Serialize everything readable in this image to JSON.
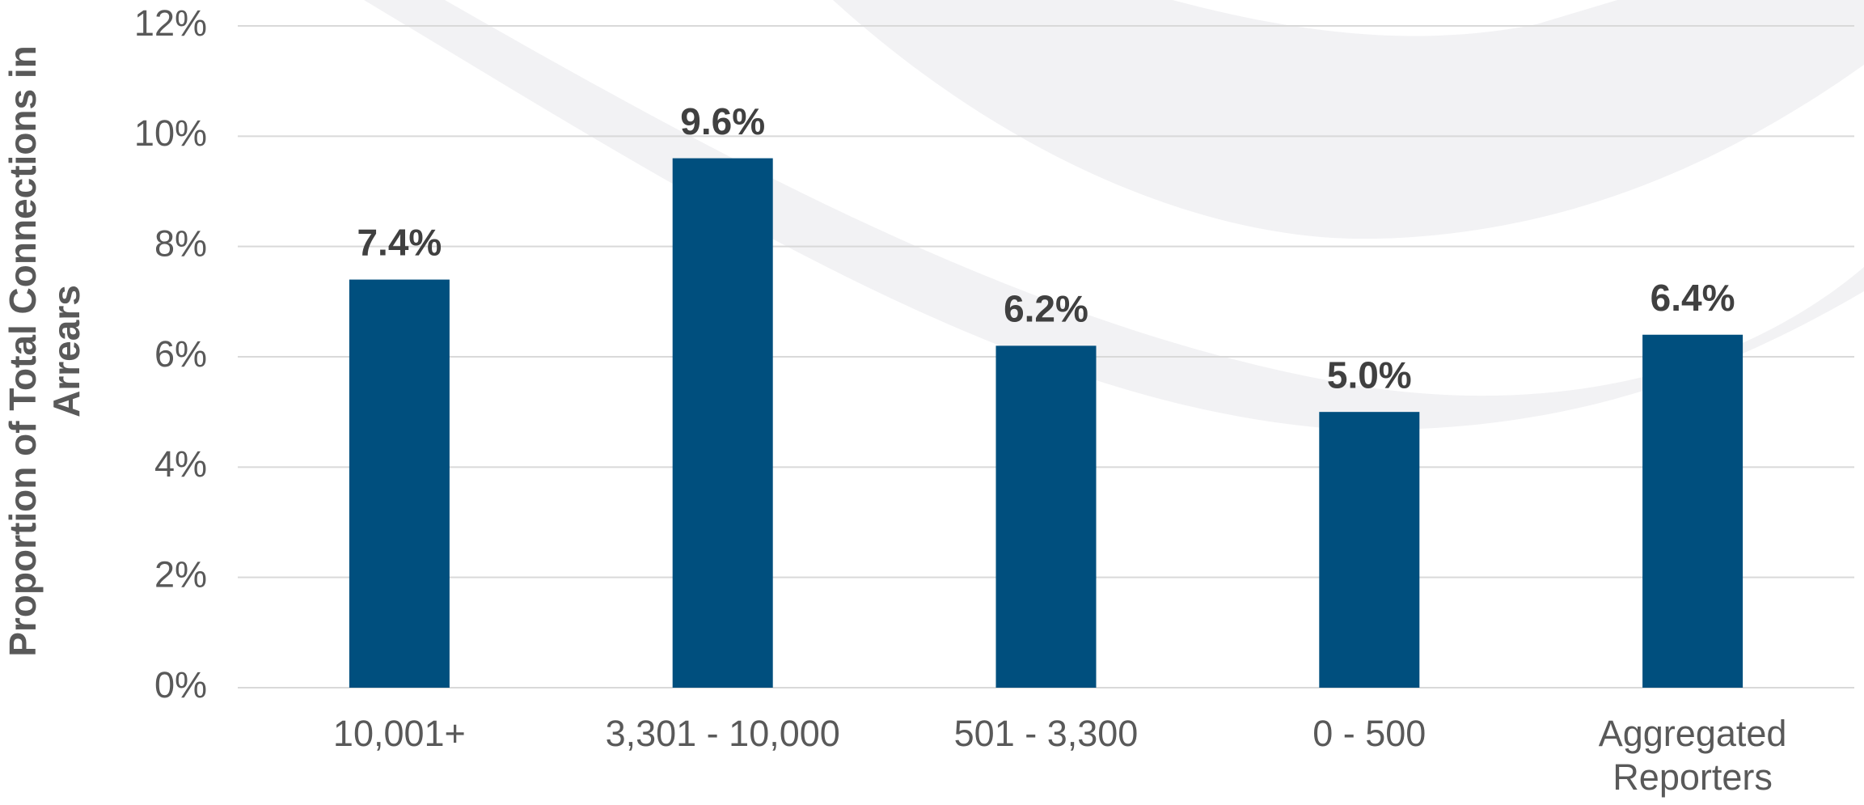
{
  "chart_data": {
    "type": "bar",
    "y_label": "Proportion of Total Connections in Arrears",
    "categories": [
      "10,001+",
      "3,301 - 10,000",
      "501 - 3,300",
      "0 - 500",
      "Aggregated Reporters"
    ],
    "values": [
      7.4,
      9.6,
      6.2,
      5.0,
      6.4
    ],
    "value_labels": [
      "7.4%",
      "9.6%",
      "6.2%",
      "5.0%",
      "6.4%"
    ],
    "color": "#004f7e",
    "ylim": [
      0,
      12
    ],
    "yticks": [
      {
        "value": 0,
        "label": "0%"
      },
      {
        "value": 2,
        "label": "2%"
      },
      {
        "value": 4,
        "label": "4%"
      },
      {
        "value": 6,
        "label": "6%"
      },
      {
        "value": 8,
        "label": "8%"
      },
      {
        "value": 10,
        "label": "10%"
      },
      {
        "value": 12,
        "label": "12%"
      }
    ],
    "grid": true
  }
}
